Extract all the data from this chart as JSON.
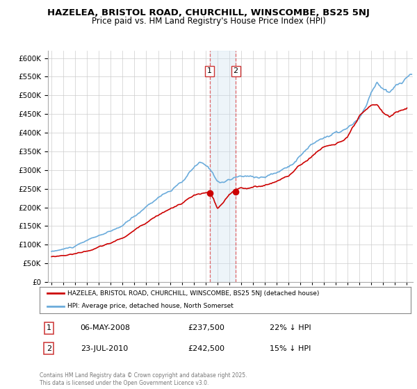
{
  "title1": "HAZELEA, BRISTOL ROAD, CHURCHILL, WINSCOMBE, BS25 5NJ",
  "title2": "Price paid vs. HM Land Registry's House Price Index (HPI)",
  "legend_line1": "HAZELEA, BRISTOL ROAD, CHURCHILL, WINSCOMBE, BS25 5NJ (detached house)",
  "legend_line2": "HPI: Average price, detached house, North Somerset",
  "annotation1_date": "06-MAY-2008",
  "annotation1_price": "£237,500",
  "annotation1_hpi": "22% ↓ HPI",
  "annotation2_date": "23-JUL-2010",
  "annotation2_price": "£242,500",
  "annotation2_hpi": "15% ↓ HPI",
  "footer": "Contains HM Land Registry data © Crown copyright and database right 2025.\nThis data is licensed under the Open Government Licence v3.0.",
  "hpi_color": "#6aabdb",
  "price_color": "#cc0000",
  "marker_color": "#cc0000",
  "shade_color": "#cce0f0",
  "ylim_min": 0,
  "ylim_max": 620000,
  "sale1_year": 2008.35,
  "sale1_price": 237500,
  "sale2_year": 2010.55,
  "sale2_price": 242500
}
